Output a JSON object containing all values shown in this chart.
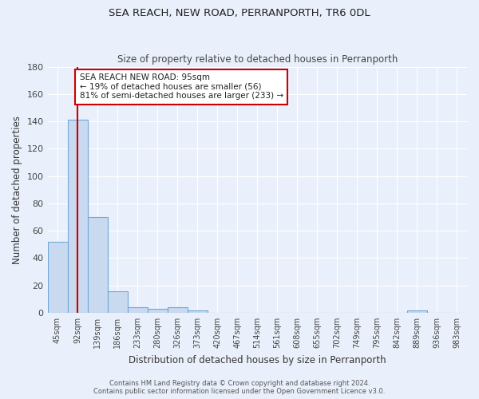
{
  "title": "SEA REACH, NEW ROAD, PERRANPORTH, TR6 0DL",
  "subtitle": "Size of property relative to detached houses in Perranporth",
  "xlabel": "Distribution of detached houses by size in Perranporth",
  "ylabel": "Number of detached properties",
  "bar_color": "#c9d9f0",
  "bar_edge_color": "#6fa8d8",
  "bg_color": "#eaf0fb",
  "grid_color": "white",
  "bin_labels": [
    "45sqm",
    "92sqm",
    "139sqm",
    "186sqm",
    "233sqm",
    "280sqm",
    "326sqm",
    "373sqm",
    "420sqm",
    "467sqm",
    "514sqm",
    "561sqm",
    "608sqm",
    "655sqm",
    "702sqm",
    "749sqm",
    "795sqm",
    "842sqm",
    "889sqm",
    "936sqm",
    "983sqm"
  ],
  "bar_values": [
    52,
    141,
    70,
    16,
    4,
    3,
    4,
    2,
    0,
    0,
    0,
    0,
    0,
    0,
    0,
    0,
    0,
    0,
    2,
    0,
    0
  ],
  "ylim": [
    0,
    180
  ],
  "yticks": [
    0,
    20,
    40,
    60,
    80,
    100,
    120,
    140,
    160,
    180
  ],
  "annotation_text": "SEA REACH NEW ROAD: 95sqm\n← 19% of detached houses are smaller (56)\n81% of semi-detached houses are larger (233) →",
  "annotation_box_color": "white",
  "annotation_border_color": "#cc0000",
  "property_line_color": "#cc0000",
  "footer_line1": "Contains HM Land Registry data © Crown copyright and database right 2024.",
  "footer_line2": "Contains public sector information licensed under the Open Government Licence v3.0."
}
